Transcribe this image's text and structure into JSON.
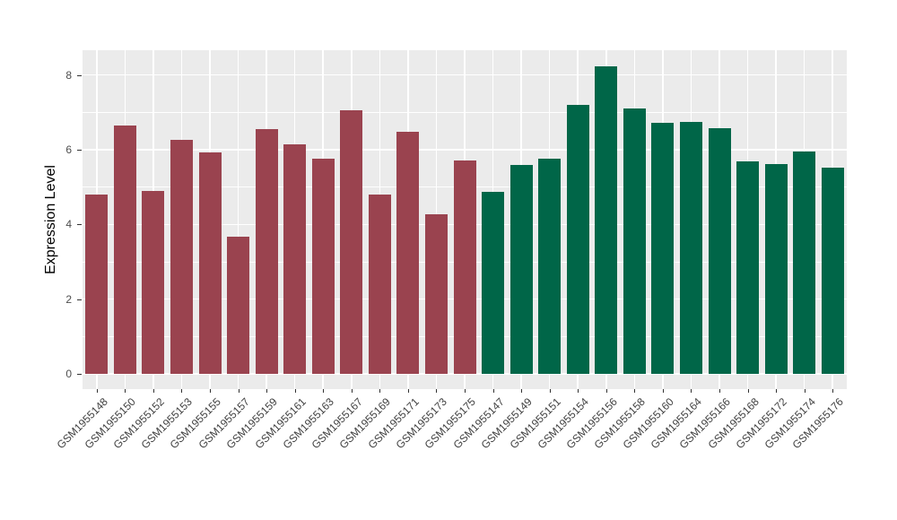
{
  "chart_data": {
    "type": "bar",
    "title": "",
    "xlabel": "",
    "ylabel": "Expression Level",
    "yticks": [
      0,
      2,
      4,
      6,
      8
    ],
    "yticks_minor": [
      1,
      3,
      5,
      7
    ],
    "ylim": [
      -0.43,
      8.66
    ],
    "legend_position": "none",
    "grid": "white major+minor horizontal and major vertical lines on gray panel",
    "panel_bg": "#EBEBEB",
    "grid_color": "#FFFFFF",
    "group_colors": {
      "group1": "#9A434F",
      "group2": "#006648"
    },
    "bars": [
      {
        "label": "GSM1955148",
        "value": 4.81,
        "group": "group1"
      },
      {
        "label": "GSM1955150",
        "value": 6.64,
        "group": "group1"
      },
      {
        "label": "GSM1955152",
        "value": 4.89,
        "group": "group1"
      },
      {
        "label": "GSM1955153",
        "value": 6.26,
        "group": "group1"
      },
      {
        "label": "GSM1955155",
        "value": 5.93,
        "group": "group1"
      },
      {
        "label": "GSM1955157",
        "value": 3.67,
        "group": "group1"
      },
      {
        "label": "GSM1955159",
        "value": 6.55,
        "group": "group1"
      },
      {
        "label": "GSM1955161",
        "value": 6.15,
        "group": "group1"
      },
      {
        "label": "GSM1955163",
        "value": 5.76,
        "group": "group1"
      },
      {
        "label": "GSM1955167",
        "value": 7.06,
        "group": "group1"
      },
      {
        "label": "GSM1955169",
        "value": 4.8,
        "group": "group1"
      },
      {
        "label": "GSM1955171",
        "value": 6.48,
        "group": "group1"
      },
      {
        "label": "GSM1955173",
        "value": 4.27,
        "group": "group1"
      },
      {
        "label": "GSM1955175",
        "value": 5.71,
        "group": "group1"
      },
      {
        "label": "GSM1955147",
        "value": 4.86,
        "group": "group2"
      },
      {
        "label": "GSM1955149",
        "value": 5.59,
        "group": "group2"
      },
      {
        "label": "GSM1955151",
        "value": 5.76,
        "group": "group2"
      },
      {
        "label": "GSM1955154",
        "value": 7.19,
        "group": "group2"
      },
      {
        "label": "GSM1955156",
        "value": 8.23,
        "group": "group2"
      },
      {
        "label": "GSM1955158",
        "value": 7.1,
        "group": "group2"
      },
      {
        "label": "GSM1955160",
        "value": 6.72,
        "group": "group2"
      },
      {
        "label": "GSM1955164",
        "value": 6.74,
        "group": "group2"
      },
      {
        "label": "GSM1955166",
        "value": 6.57,
        "group": "group2"
      },
      {
        "label": "GSM1955168",
        "value": 5.68,
        "group": "group2"
      },
      {
        "label": "GSM1955172",
        "value": 5.61,
        "group": "group2"
      },
      {
        "label": "GSM1955174",
        "value": 5.94,
        "group": "group2"
      },
      {
        "label": "GSM1955176",
        "value": 5.52,
        "group": "group2"
      }
    ]
  }
}
